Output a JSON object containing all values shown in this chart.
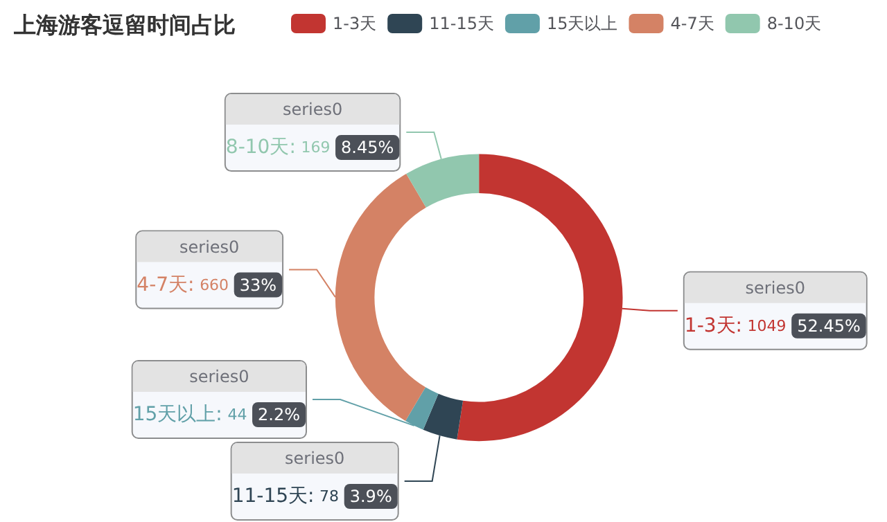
{
  "chart_data": {
    "type": "donut",
    "title": "上海游客逗留时间占比",
    "categories": [
      "1-3天",
      "11-15天",
      "15天以上",
      "4-7天",
      "8-10天"
    ],
    "series": [
      {
        "name": "series0",
        "values": [
          1049,
          78,
          44,
          660,
          169
        ],
        "colors": [
          "#c23531",
          "#2f4554",
          "#61a0a8",
          "#d48265",
          "#91c7ae"
        ],
        "value_labels": [
          "1-3天: 1049 52.45%",
          "11-15天: 78 3.9%",
          "15天以上: 44 2.2%",
          "4-7天: 660 33%",
          "8-10天: 169 8.45%"
        ]
      }
    ],
    "legend": "top"
  }
}
